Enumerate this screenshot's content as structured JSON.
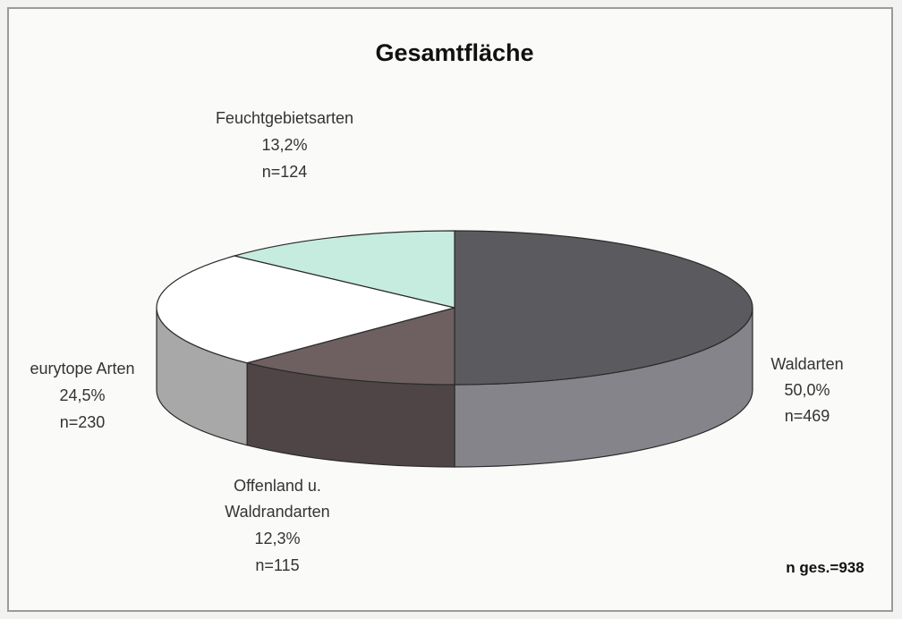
{
  "chart_data": {
    "type": "pie",
    "title": "Gesamtfläche",
    "total_label": "n ges.=938",
    "slices": [
      {
        "name": "Waldarten",
        "percent_label": "50,0%",
        "n_label": "n=469",
        "value": 469,
        "color": "#5b5b5f"
      },
      {
        "name": "Offenland u. Waldrandarten",
        "label_lines": [
          "Offenland u.",
          "Waldrandarten"
        ],
        "percent_label": "12,3%",
        "n_label": "n=115",
        "value": 115,
        "color": "#6e6061"
      },
      {
        "name": "eurytope Arten",
        "percent_label": "24,5%",
        "n_label": "n=230",
        "value": 230,
        "color": "#ffffff"
      },
      {
        "name": "Feuchtgebietsarten",
        "percent_label": "13,2%",
        "n_label": "n=124",
        "value": 124,
        "color": "#c6ece0"
      }
    ]
  }
}
